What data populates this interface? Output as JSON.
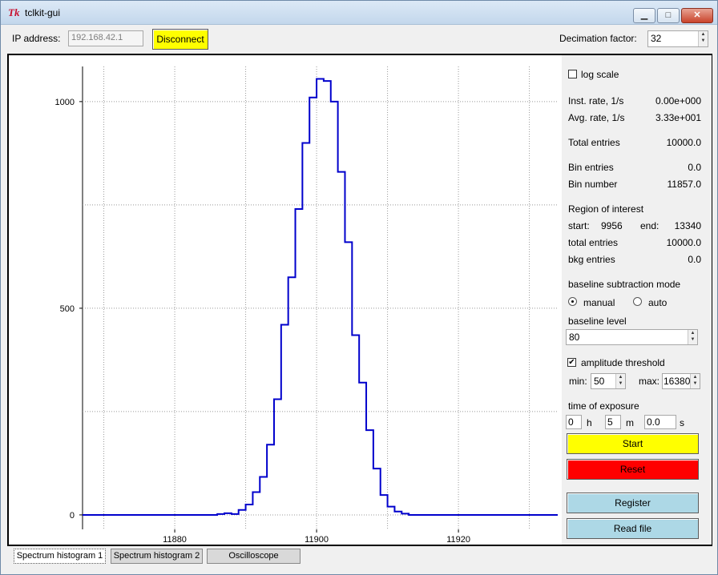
{
  "window": {
    "title": "tclkit-gui",
    "icon": "tk-feather-icon"
  },
  "topbar": {
    "ip_label": "IP address:",
    "ip_value": "192.168.42.1",
    "disconnect_label": "Disconnect",
    "decimation_label": "Decimation factor:",
    "decimation_value": "32"
  },
  "chart_data": {
    "type": "line",
    "x_ticks": [
      "11880",
      "11900",
      "11920"
    ],
    "y_ticks": [
      "0",
      "500",
      "1000"
    ],
    "xlim": [
      11867,
      11934
    ],
    "ylim": [
      -35,
      1085
    ],
    "grid": true,
    "line_color": "#0000cc",
    "bins_x": [
      11867,
      11886,
      11887,
      11888,
      11889,
      11890,
      11891,
      11892,
      11893,
      11894,
      11895,
      11896,
      11897,
      11898,
      11899,
      11900,
      11901,
      11902,
      11903,
      11904,
      11905,
      11906,
      11907,
      11908,
      11909,
      11910,
      11911,
      11912,
      11913,
      11934
    ],
    "bins_y": [
      0,
      2,
      4,
      2,
      12,
      25,
      55,
      92,
      170,
      280,
      460,
      575,
      740,
      900,
      1010,
      1055,
      1050,
      1000,
      830,
      660,
      435,
      320,
      205,
      112,
      48,
      20,
      8,
      3,
      0,
      0
    ]
  },
  "panel": {
    "log_scale_label": "log scale",
    "inst_rate_label": "Inst. rate, 1/s",
    "inst_rate_value": "0.00e+000",
    "avg_rate_label": "Avg. rate, 1/s",
    "avg_rate_value": "3.33e+001",
    "total_entries_label": "Total entries",
    "total_entries_value": "10000.0",
    "bin_entries_label": "Bin entries",
    "bin_entries_value": "0.0",
    "bin_number_label": "Bin number",
    "bin_number_value": "11857.0",
    "roi_label": "Region of interest",
    "roi_start_label": "start:",
    "roi_start_value": "9956",
    "roi_end_label": "end:",
    "roi_end_value": "13340",
    "roi_total_label": "total entries",
    "roi_total_value": "10000.0",
    "bkg_label": "bkg entries",
    "bkg_value": "0.0",
    "baseline_mode_label": "baseline subtraction mode",
    "manual_label": "manual",
    "auto_label": "auto",
    "baseline_level_label": "baseline level",
    "baseline_level_value": "80",
    "amp_threshold_label": "amplitude threshold",
    "min_label": "min:",
    "min_value": "50",
    "max_label": "max:",
    "max_value": "16380",
    "exposure_label": "time of exposure",
    "h_value": "0",
    "h_label": "h",
    "m_value": "5",
    "m_label": "m",
    "s_value": "0.0",
    "s_label": "s",
    "start_label": "Start",
    "reset_label": "Reset",
    "register_label": "Register",
    "read_file_label": "Read file"
  },
  "tabs": [
    {
      "label": "Spectrum histogram 1"
    },
    {
      "label": "Spectrum histogram 2"
    },
    {
      "label": "Oscilloscope"
    }
  ]
}
